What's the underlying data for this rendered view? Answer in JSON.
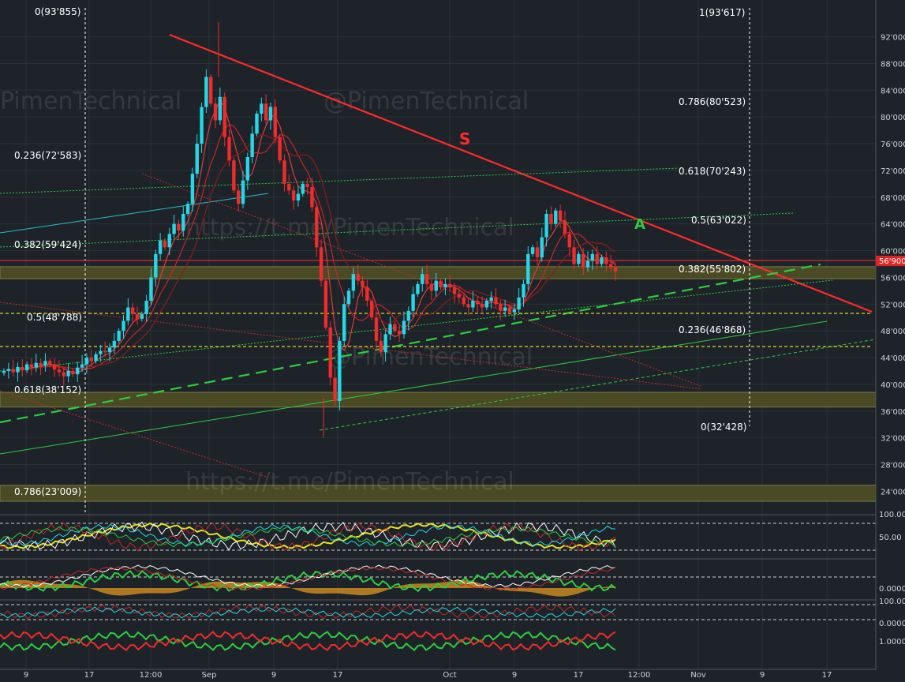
{
  "chart_data": {
    "type": "candlestick",
    "watermark": "@PimenTechnical",
    "watermark_url": "https://t.me/PimenTechnical",
    "current_price_label": "56'900",
    "annotations": [
      {
        "label": "S",
        "color": "#ff2a2a"
      },
      {
        "label": "A",
        "color": "#2ecc40"
      }
    ],
    "fib_left": [
      {
        "label": "0(93'855)",
        "price": 93855
      },
      {
        "label": "0.236(72'583)",
        "price": 72583
      },
      {
        "label": "0.382(59'424)",
        "price": 59424
      },
      {
        "label": "0.5(48'788)",
        "price": 48788
      },
      {
        "label": "0.618(38'152)",
        "price": 38152
      },
      {
        "label": "0.786(23'009)",
        "price": 23009
      }
    ],
    "fib_right": [
      {
        "label": "1(93'617)",
        "price": 93617
      },
      {
        "label": "0.786(80'523)",
        "price": 80523
      },
      {
        "label": "0.618(70'243)",
        "price": 70243
      },
      {
        "label": "0.5(63'022)",
        "price": 63022
      },
      {
        "label": "0.382(55'802)",
        "price": 55802
      },
      {
        "label": "0.236(46'868)",
        "price": 46868
      },
      {
        "label": "0(32'428)",
        "price": 32428
      }
    ],
    "price_axis": {
      "ticks": [
        92000,
        88000,
        84000,
        80000,
        76000,
        72000,
        68000,
        64000,
        60000,
        56000,
        52000,
        48000,
        44000,
        40000,
        36000,
        32000,
        28000,
        24000
      ],
      "tick_labels": [
        "92'000",
        "88'000",
        "84'000",
        "80'000",
        "76'000",
        "72'000",
        "68'000",
        "64'000",
        "60'000",
        "56'000",
        "52'000",
        "48'000",
        "44'000",
        "40'000",
        "36'000",
        "32'000",
        "28'000",
        "24'000"
      ],
      "range": [
        21500,
        96000
      ]
    },
    "indicator_axis_labels": [
      "100.00",
      "50.00",
      "0.0000",
      "100.00",
      "0.0000",
      "1.0000"
    ],
    "x_labels": [
      "9",
      "17",
      "12:00",
      "Sep",
      "9",
      "17",
      "Oct",
      "9",
      "17",
      "12:00",
      "Nov",
      "9",
      "17"
    ],
    "zones": [
      {
        "from": 55800,
        "to": 57600,
        "color": "#4a4a25"
      },
      {
        "from": 36600,
        "to": 38800,
        "color": "#4a4a25"
      },
      {
        "from": 22500,
        "to": 24900,
        "color": "#4a4a25"
      }
    ],
    "close_path": [
      42000,
      42300,
      41800,
      42600,
      42100,
      43000,
      42500,
      43200,
      42800,
      43500,
      43000,
      42200,
      41800,
      41200,
      42000,
      41500,
      42500,
      43000,
      44000,
      43500,
      44500,
      45000,
      44800,
      45500,
      46500,
      48000,
      49500,
      51500,
      50500,
      49800,
      50500,
      52500,
      56000,
      59500,
      61500,
      60500,
      62500,
      64000,
      63000,
      65500,
      67000,
      71500,
      76000,
      81500,
      86000,
      82000,
      79500,
      83000,
      77000,
      73500,
      69000,
      67000,
      70500,
      74000,
      77500,
      80500,
      82000,
      79500,
      81500,
      77000,
      73500,
      70000,
      69000,
      67500,
      68500,
      70000,
      69500,
      66500,
      60500,
      55500,
      48500,
      41000,
      37500,
      46500,
      52000,
      54000,
      56500,
      55500,
      54500,
      52500,
      50000,
      46500,
      44800,
      47500,
      49000,
      48000,
      47500,
      49500,
      51000,
      53500,
      55000,
      56500,
      55000,
      54000,
      55500,
      54500,
      55000,
      54500,
      53500,
      53000,
      52000,
      51500,
      52500,
      52000,
      51500,
      52500,
      53000,
      52000,
      51000,
      51500,
      50800,
      51200,
      53000,
      55000,
      59500,
      60500,
      59000,
      62000,
      65500,
      64000,
      66000,
      64500,
      62500,
      60500,
      58000,
      59500,
      57500,
      58500,
      59500,
      58000,
      59000,
      58000,
      57500,
      56900
    ]
  }
}
